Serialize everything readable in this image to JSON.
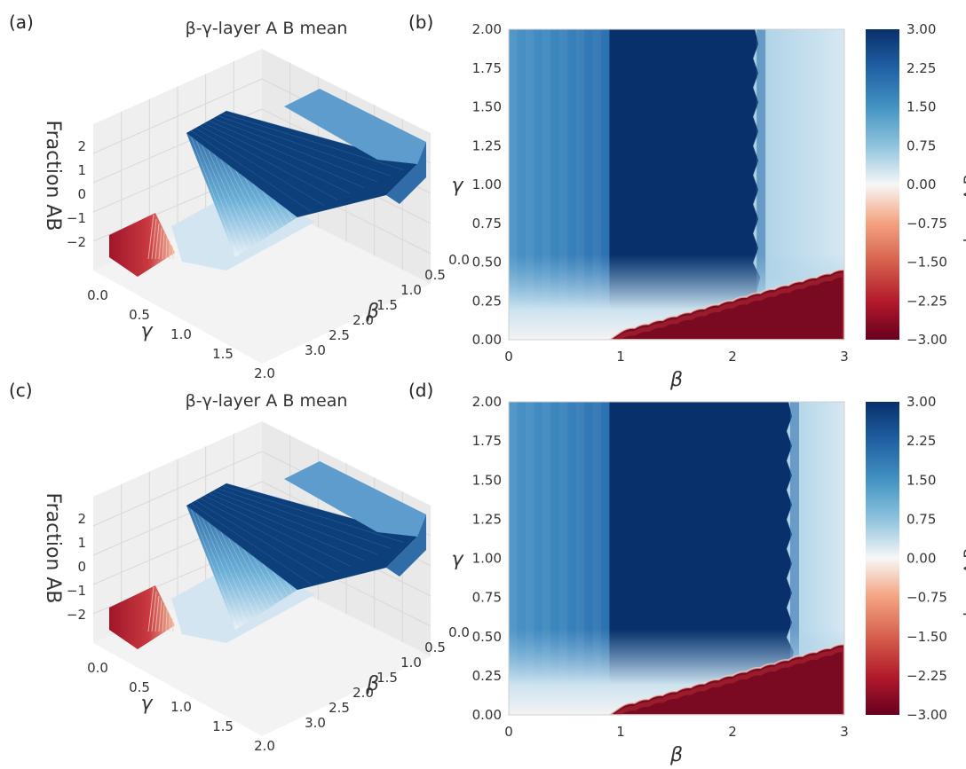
{
  "panels": {
    "a": "(a)",
    "b": "(b)",
    "c": "(c)",
    "d": "(d)"
  },
  "colors": {
    "max": "#08306b",
    "mid": "#f7f7f7",
    "min": "#67001f"
  },
  "chart_data": [
    {
      "type": "surface",
      "panel": "a",
      "title": "β-γ-layer A B mean",
      "zlabel": "Fraction AB",
      "ylabel": "γ",
      "xlabel": "β",
      "x_ticks": [
        "0.0",
        "0.5",
        "1.0",
        "1.5",
        "2.0",
        "2.5",
        "3.0"
      ],
      "y_ticks": [
        "0.0",
        "0.5",
        "1.0",
        "1.5",
        "2.0"
      ],
      "z_ticks": [
        "2",
        "1",
        "0",
        "−1",
        "−2"
      ],
      "zlim": [
        -3,
        3
      ],
      "xlim": [
        0,
        3
      ],
      "ylim": [
        0,
        2
      ]
    },
    {
      "type": "heatmap",
      "panel": "b",
      "xlabel": "β",
      "ylabel": "γ",
      "colorbar_label": "layer A B mean",
      "xlim": [
        0,
        3
      ],
      "ylim": [
        0,
        2
      ],
      "x_ticks": [
        "0",
        "1",
        "2",
        "3"
      ],
      "y_ticks": [
        "0.00",
        "0.25",
        "0.50",
        "0.75",
        "1.00",
        "1.25",
        "1.50",
        "1.75",
        "2.00"
      ],
      "colorbar_ticks": [
        "3.00",
        "2.25",
        "1.50",
        "0.75",
        "0.00",
        "−0.75",
        "−1.50",
        "−2.25",
        "−3.00"
      ],
      "clim": [
        -3,
        3
      ],
      "regions": {
        "left_level": 1.5,
        "left_beta_max": 0.9,
        "center_level": 3.0,
        "center_beta": [
          0.9,
          2.2
        ],
        "right_level": 0.5,
        "bottom_level": -3.0,
        "boundary_beta": [
          1.0,
          3.0
        ],
        "boundary_gamma": [
          0.05,
          0.45
        ]
      }
    },
    {
      "type": "surface",
      "panel": "c",
      "title": "β-γ-layer A B mean",
      "zlabel": "Fraction AB",
      "ylabel": "γ",
      "xlabel": "β",
      "x_ticks": [
        "0.0",
        "0.5",
        "1.0",
        "1.5",
        "2.0",
        "2.5",
        "3.0"
      ],
      "y_ticks": [
        "0.0",
        "0.5",
        "1.0",
        "1.5",
        "2.0"
      ],
      "z_ticks": [
        "2",
        "1",
        "0",
        "−1",
        "−2"
      ],
      "zlim": [
        -3,
        3
      ],
      "xlim": [
        0,
        3
      ],
      "ylim": [
        0,
        2
      ]
    },
    {
      "type": "heatmap",
      "panel": "d",
      "xlabel": "β",
      "ylabel": "γ",
      "colorbar_label": "layer A B mean",
      "xlim": [
        0,
        3
      ],
      "ylim": [
        0,
        2
      ],
      "x_ticks": [
        "0",
        "1",
        "2",
        "3"
      ],
      "y_ticks": [
        "0.00",
        "0.25",
        "0.50",
        "0.75",
        "1.00",
        "1.25",
        "1.50",
        "1.75",
        "2.00"
      ],
      "colorbar_ticks": [
        "3.00",
        "2.25",
        "1.50",
        "0.75",
        "0.00",
        "−0.75",
        "−1.50",
        "−2.25",
        "−3.00"
      ],
      "clim": [
        -3,
        3
      ],
      "regions": {
        "left_level": 1.5,
        "left_beta_max": 0.9,
        "center_level": 3.0,
        "center_beta": [
          0.9,
          2.5
        ],
        "right_level": 0.5,
        "bottom_level": -3.0,
        "boundary_beta": [
          1.0,
          3.0
        ],
        "boundary_gamma": [
          0.05,
          0.45
        ]
      }
    }
  ]
}
